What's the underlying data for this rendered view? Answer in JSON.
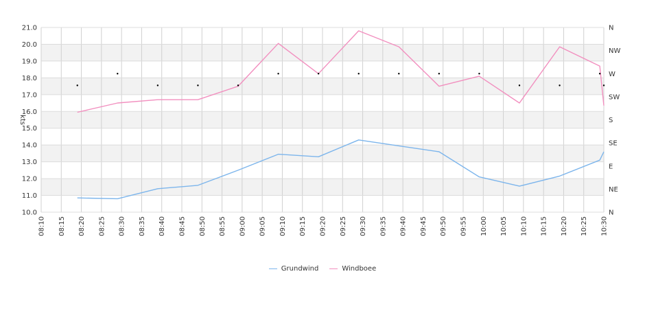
{
  "chart_data": {
    "type": "line",
    "ylabel": "kts",
    "ylim": [
      10,
      21
    ],
    "y_ticks": [
      "10.0",
      "11.0",
      "12.0",
      "13.0",
      "14.0",
      "15.0",
      "16.0",
      "17.0",
      "18.0",
      "19.0",
      "20.0",
      "21.0"
    ],
    "x_ticks": [
      "08:10",
      "08:15",
      "08:20",
      "08:25",
      "08:30",
      "08:35",
      "08:40",
      "08:45",
      "08:50",
      "08:55",
      "09:00",
      "09:05",
      "09:10",
      "09:15",
      "09:20",
      "09:25",
      "09:30",
      "09:35",
      "09:40",
      "09:45",
      "09:50",
      "09:55",
      "10:00",
      "10:05",
      "10:10",
      "10:15",
      "10:20",
      "10:25",
      "10:30"
    ],
    "y2_ticks": [
      "N",
      "NE",
      "E",
      "SE",
      "S",
      "SW",
      "W",
      "NW",
      "N"
    ],
    "alternating_bands": true,
    "grid": true,
    "legend_position": "bottom-center",
    "series": [
      {
        "name": "Grundwind",
        "color": "#7cb5ec",
        "x": [
          "08:19",
          "08:29",
          "08:39",
          "08:49",
          "08:59",
          "09:09",
          "09:19",
          "09:29",
          "09:39",
          "09:49",
          "09:59",
          "10:09",
          "10:19",
          "10:29",
          "10:30"
        ],
        "values": [
          10.85,
          10.8,
          11.4,
          11.6,
          12.5,
          13.45,
          13.3,
          14.3,
          13.95,
          13.6,
          12.1,
          11.55,
          12.15,
          13.1,
          13.6
        ]
      },
      {
        "name": "Windboee",
        "color": "#f28fbf",
        "x": [
          "08:19",
          "08:29",
          "08:39",
          "08:49",
          "08:59",
          "09:09",
          "09:19",
          "09:29",
          "09:39",
          "09:49",
          "09:59",
          "10:09",
          "10:19",
          "10:29",
          "10:30"
        ],
        "values": [
          15.95,
          16.5,
          16.7,
          16.7,
          17.5,
          20.05,
          18.25,
          20.8,
          19.85,
          17.5,
          18.1,
          16.5,
          19.85,
          18.7,
          16.35
        ]
      }
    ],
    "direction": {
      "color": "#000000",
      "x": [
        "08:19",
        "08:29",
        "08:39",
        "08:49",
        "08:59",
        "09:09",
        "09:19",
        "09:29",
        "09:39",
        "09:49",
        "09:59",
        "10:09",
        "10:19",
        "10:29",
        "10:30"
      ],
      "values": [
        17.55,
        18.25,
        17.55,
        17.55,
        17.55,
        18.25,
        18.25,
        18.25,
        18.25,
        18.25,
        18.25,
        17.55,
        17.55,
        18.25,
        17.55
      ]
    }
  }
}
